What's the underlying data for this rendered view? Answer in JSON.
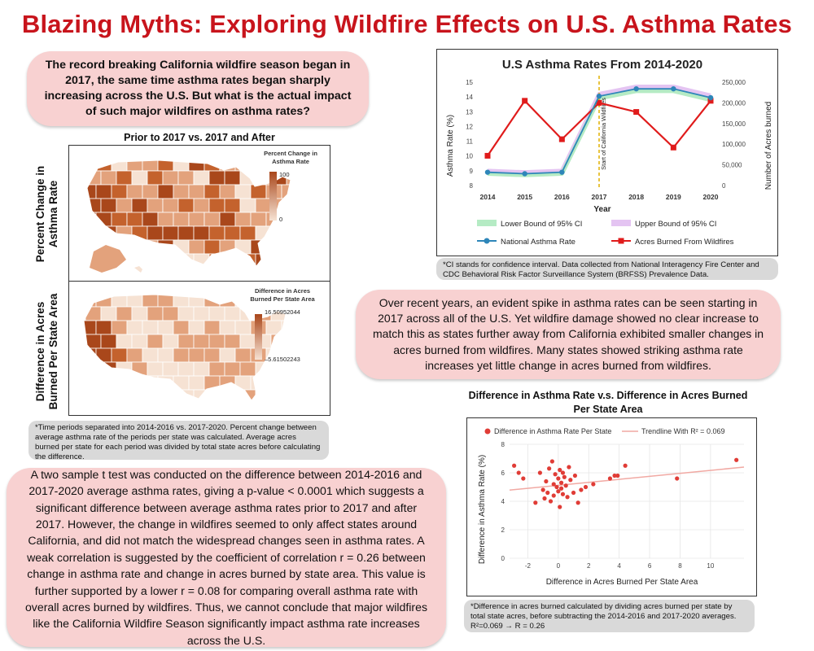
{
  "title": "Blazing Myths: Exploring Wildfire Effects on U.S. Asthma Rates",
  "intro_question": "The record breaking California wildfire season began in 2017, the same time asthma rates began sharply increasing across the U.S. But what is the actual impact of such major wildfires on asthma rates?",
  "maps": {
    "section_title": "Prior to 2017 vs. 2017 and After",
    "row1_label_line1": "Percent Change in",
    "row1_label_line2": "Asthma Rate",
    "row2_label_line1": "Difference in Acres",
    "row2_label_line2": "Burned Per State Area",
    "legend1_title_line1": "Percent Change in",
    "legend1_title_line2": "Asthma Rate",
    "legend1_max": "100",
    "legend1_min": "0",
    "legend2_title_line1": "Difference in Acres",
    "legend2_title_line2": "Burned Per State Area",
    "legend2_max": "16.50952044",
    "legend2_min": "–5.61502243",
    "colors": {
      "low": "#f6e2d3",
      "mid": "#e3a27c",
      "high": "#c4622d",
      "highest": "#a9471b"
    },
    "note": "*Time periods separated into 2014-2016 vs. 2017-2020. Percent change between average asthma rate of the periods per state was calculated. Average acres burned per state for each period was divided by total state acres before calculating the difference."
  },
  "chart_data": [
    {
      "type": "line",
      "title": "U.S Asthma Rates From 2014-2020",
      "xlabel": "Year",
      "ylabel": "Asthma Rate (%)",
      "y2label": "Number of Acres burned",
      "x": [
        2014,
        2015,
        2016,
        2017,
        2018,
        2019,
        2020
      ],
      "ylim": [
        8,
        15
      ],
      "y2lim": [
        0,
        250000
      ],
      "y_ticks": [
        8,
        9,
        10,
        11,
        12,
        13,
        14,
        15
      ],
      "y2_ticks": [
        "0",
        "50,000",
        "100,000",
        "150,000",
        "200,000",
        "250,000"
      ],
      "y2_tick_values": [
        0,
        50000,
        100000,
        150000,
        200000,
        250000
      ],
      "annotation": "Start of California Wildfires",
      "annotation_x": 2017,
      "series": [
        {
          "name": "Lower Bound of 95% CI",
          "axis": "left",
          "values": [
            8.8,
            8.7,
            8.8,
            13.9,
            14.4,
            14.4,
            13.8
          ],
          "color": "#b5ebc4"
        },
        {
          "name": "Upper Bound of 95% CI",
          "axis": "left",
          "values": [
            9.0,
            8.9,
            9.0,
            14.2,
            14.7,
            14.7,
            14.1
          ],
          "color": "#e4c4f2"
        },
        {
          "name": "National Asthma Rate",
          "axis": "left",
          "values": [
            8.9,
            8.8,
            8.9,
            14.05,
            14.55,
            14.55,
            13.95
          ],
          "color": "#2e86b9"
        },
        {
          "name": "Acres Burned From Wildfires",
          "axis": "right",
          "values": [
            72000,
            205000,
            112000,
            200000,
            178000,
            92000,
            205000
          ],
          "color": "#e01b1b"
        }
      ]
    },
    {
      "type": "scatter",
      "title": "Difference in Asthma Rate v.s. Difference in Acres Burned Per State Area",
      "xlabel": "Difference in Acres Burned Per State Area",
      "ylabel": "Difference in Asthma Rate (%)",
      "xlim": [
        -3.2,
        12.2
      ],
      "ylim": [
        0,
        8
      ],
      "x_ticks": [
        -2,
        0,
        2,
        4,
        6,
        8,
        10
      ],
      "y_ticks": [
        0,
        2,
        4,
        6,
        8
      ],
      "series_name": "Difference in Asthma Rate Per State",
      "trendline_name": "Trendline With R² = 0.069",
      "trendline": {
        "intercept": 5.12,
        "slope": 0.105
      },
      "point_color": "#e03c36",
      "trend_color": "#f1a9a3",
      "points": [
        [
          -2.9,
          6.5
        ],
        [
          -2.6,
          6.0
        ],
        [
          -2.3,
          5.6
        ],
        [
          -1.5,
          3.9
        ],
        [
          -1.2,
          6.0
        ],
        [
          -1.0,
          4.8
        ],
        [
          -0.9,
          4.2
        ],
        [
          -0.8,
          5.4
        ],
        [
          -0.7,
          4.6
        ],
        [
          -0.6,
          6.3
        ],
        [
          -0.5,
          4.0
        ],
        [
          -0.4,
          6.8
        ],
        [
          -0.3,
          5.2
        ],
        [
          -0.3,
          4.4
        ],
        [
          -0.2,
          5.9
        ],
        [
          -0.1,
          5.0
        ],
        [
          0.0,
          4.7
        ],
        [
          0.0,
          5.6
        ],
        [
          0.1,
          6.2
        ],
        [
          0.1,
          3.6
        ],
        [
          0.2,
          5.3
        ],
        [
          0.2,
          4.9
        ],
        [
          0.3,
          6.0
        ],
        [
          0.3,
          4.5
        ],
        [
          0.4,
          5.7
        ],
        [
          0.5,
          5.1
        ],
        [
          0.6,
          4.3
        ],
        [
          0.7,
          6.4
        ],
        [
          0.8,
          5.5
        ],
        [
          1.0,
          4.6
        ],
        [
          1.1,
          5.8
        ],
        [
          1.3,
          3.9
        ],
        [
          1.5,
          4.8
        ],
        [
          1.8,
          5.0
        ],
        [
          2.3,
          5.2
        ],
        [
          3.4,
          5.6
        ],
        [
          3.7,
          5.8
        ],
        [
          3.9,
          5.8
        ],
        [
          4.4,
          6.5
        ],
        [
          7.8,
          5.6
        ],
        [
          11.7,
          6.9
        ]
      ]
    }
  ],
  "line_note": "*CI stands for confidence interval. Data collected from National Interagency Fire Center and CDC Behavioral Risk Factor Surveillance System (BRFSS) Prevalence Data.",
  "summary": "Over recent years, an evident spike in asthma rates can be seen starting in 2017 across all of the U.S. Yet wildfire damage showed no clear increase to match this as states further away from California exhibited smaller changes in acres burned from wildfires. Many states showed striking asthma rate increases yet little change in acres burned from wildfires.",
  "scatter_note": "*Difference in acres burned calculated by dividing acres burned per state by total state acres, before subtracting the 2014-2016 and 2017-2020 averages. R²=0.069 → R = 0.26",
  "stats_text": "A two sample t test was conducted on the difference between 2014-2016 and 2017-2020 average asthma rates, giving a p-value < 0.0001 which suggests a significant difference between average asthma rates prior to 2017 and after 2017. However, the change in wildfires seemed to only affect states around California, and did not match the widespread changes seen in asthma rates. A weak correlation is suggested by the coefficient of correlation r = 0.26 between change in asthma rate and change in acres burned by state area. This value is further supported by a lower r = 0.08 for comparing overall asthma rate with overall acres burned by wildfires. Thus, we cannot conclude that major wildfires like the California Wildfire Season significantly impact asthma rate increases across the U.S."
}
